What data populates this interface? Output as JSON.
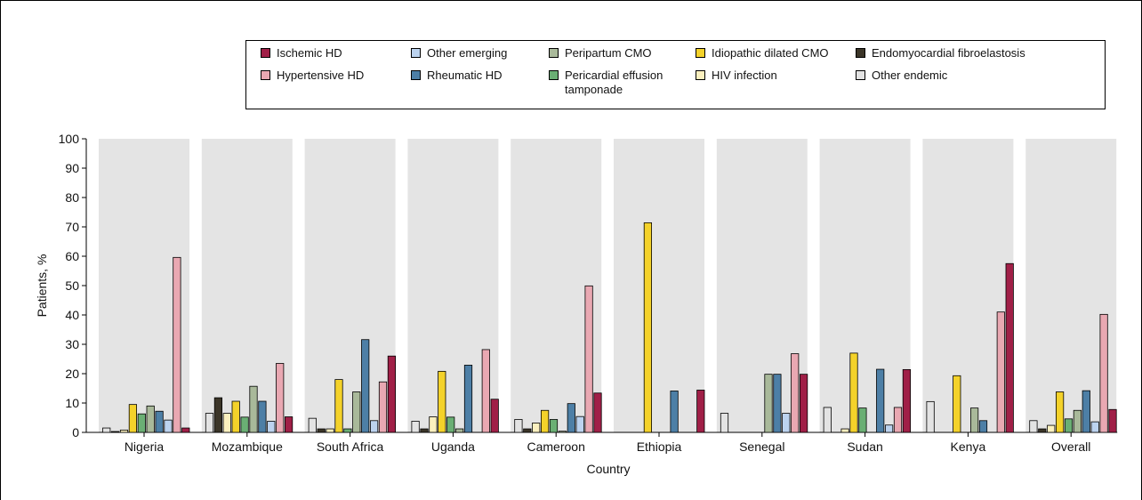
{
  "chart_data": {
    "type": "bar",
    "title": "",
    "xlabel": "Country",
    "ylabel": "Patients, %",
    "ylim": [
      0,
      100
    ],
    "yticks": [
      0,
      10,
      20,
      30,
      40,
      50,
      60,
      70,
      80,
      90,
      100
    ],
    "grid": false,
    "legend_position": "top",
    "categories": [
      "Nigeria",
      "Mozambique",
      "South Africa",
      "Uganda",
      "Cameroon",
      "Ethiopia",
      "Senegal",
      "Sudan",
      "Kenya",
      "Overall"
    ],
    "series": [
      {
        "name": "Other endemic",
        "color": "#e3e3e3",
        "values": [
          1.5,
          6.5,
          4.8,
          3.8,
          4.4,
          0,
          6.5,
          8.5,
          10.5,
          4.0
        ]
      },
      {
        "name": "Endomyocardial fibroelastosis",
        "color": "#3b3528",
        "values": [
          0.3,
          11.8,
          1.2,
          1.2,
          1.2,
          0,
          0,
          0,
          0,
          1.2
        ]
      },
      {
        "name": "HIV infection",
        "color": "#fbf0bf",
        "values": [
          0.8,
          6.5,
          1.2,
          5.3,
          3.2,
          0,
          0,
          1.2,
          0,
          2.4
        ]
      },
      {
        "name": "Idiopathic dilated CMO",
        "color": "#f4d22a",
        "values": [
          9.5,
          10.6,
          18.0,
          20.8,
          7.5,
          71.4,
          0,
          27.0,
          19.3,
          13.8
        ]
      },
      {
        "name": "Pericardial effusion tamponade",
        "color": "#6aaf74",
        "values": [
          6.3,
          5.2,
          1.2,
          5.2,
          4.4,
          0,
          0,
          8.3,
          0,
          4.6
        ]
      },
      {
        "name": "Peripartum CMO",
        "color": "#a9b99a",
        "values": [
          9.0,
          15.7,
          13.8,
          1.2,
          0.4,
          0,
          19.8,
          0,
          8.3,
          7.5
        ]
      },
      {
        "name": "Rheumatic HD",
        "color": "#4d7fa6",
        "values": [
          7.2,
          10.6,
          31.6,
          22.9,
          9.8,
          14.1,
          19.8,
          21.5,
          4.0,
          14.2
        ]
      },
      {
        "name": "Other emerging",
        "color": "#bcd3ef",
        "values": [
          4.2,
          3.8,
          4.0,
          0,
          5.4,
          0,
          6.5,
          2.5,
          0,
          3.6
        ]
      },
      {
        "name": "Hypertensive HD",
        "color": "#e9a8b2",
        "values": [
          59.6,
          23.5,
          17.2,
          28.2,
          49.9,
          0,
          26.8,
          8.5,
          41.0,
          40.2
        ]
      },
      {
        "name": "Ischemic HD",
        "color": "#a01f47",
        "values": [
          1.5,
          5.3,
          26.0,
          11.3,
          13.4,
          14.4,
          19.8,
          21.4,
          57.5,
          7.8
        ]
      }
    ]
  },
  "legend": [
    {
      "label": "Ischemic HD",
      "color": "#a01f47"
    },
    {
      "label": "Other emerging",
      "color": "#bcd3ef"
    },
    {
      "label": "Peripartum CMO",
      "color": "#a9b99a"
    },
    {
      "label": "Idiopathic dilated CMO",
      "color": "#f4d22a"
    },
    {
      "label": "Endomyocardial fibroelastosis",
      "color": "#3b3528"
    },
    {
      "label": "Hypertensive HD",
      "color": "#e9a8b2"
    },
    {
      "label": "Rheumatic HD",
      "color": "#4d7fa6"
    },
    {
      "label": "Pericardial effusion tamponade",
      "color": "#6aaf74"
    },
    {
      "label": "HIV infection",
      "color": "#fbf0bf"
    },
    {
      "label": "Other endemic",
      "color": "#e3e3e3"
    }
  ]
}
